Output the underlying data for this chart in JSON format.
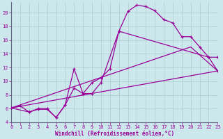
{
  "xlabel": "Windchill (Refroidissement éolien,°C)",
  "bg_color": "#cce8ec",
  "line_color": "#990099",
  "grid_color": "#aacccc",
  "xlim": [
    0,
    23
  ],
  "ylim": [
    4,
    21.5
  ],
  "yticks": [
    4,
    6,
    8,
    10,
    12,
    14,
    16,
    18,
    20
  ],
  "xticks": [
    0,
    1,
    2,
    3,
    4,
    5,
    6,
    7,
    8,
    9,
    10,
    11,
    12,
    13,
    14,
    15,
    16,
    17,
    18,
    19,
    20,
    21,
    22,
    23
  ],
  "line1_x": [
    0,
    1,
    2,
    3,
    4,
    5,
    6,
    7,
    8,
    9,
    10,
    11,
    12,
    13,
    14,
    15,
    16,
    17,
    18,
    19,
    20,
    21,
    22,
    23
  ],
  "line1_y": [
    6.1,
    6.4,
    5.5,
    6.0,
    6.0,
    4.7,
    6.5,
    9.0,
    8.2,
    9.8,
    10.5,
    11.8,
    17.3,
    20.2,
    21.1,
    20.9,
    20.3,
    19.0,
    18.5,
    16.5,
    16.5,
    15.0,
    13.5,
    13.5
  ],
  "line2_x": [
    0,
    2,
    3,
    4,
    5,
    6,
    7,
    8,
    9,
    10,
    12,
    22,
    23
  ],
  "line2_y": [
    6.1,
    5.5,
    5.9,
    5.9,
    4.7,
    6.5,
    11.8,
    8.2,
    8.2,
    9.8,
    17.3,
    13.5,
    11.5
  ],
  "line3_x": [
    0,
    23
  ],
  "line3_y": [
    6.1,
    11.5
  ],
  "line4_x": [
    0,
    20,
    23
  ],
  "line4_y": [
    6.1,
    15.0,
    11.5
  ]
}
